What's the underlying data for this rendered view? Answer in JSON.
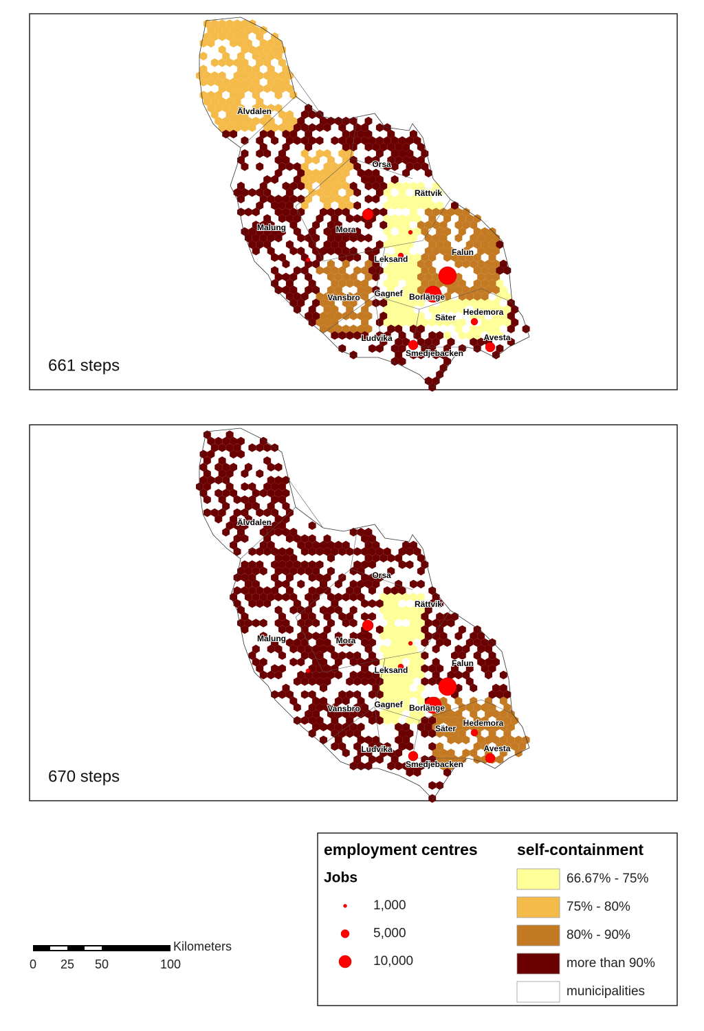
{
  "panels": [
    {
      "label": "661 steps",
      "places": [
        "Älvdalen",
        "Orsa",
        "Rättvik",
        "Mora",
        "Malung",
        "Leksand",
        "Falun",
        "Vansbro",
        "Gagnef",
        "Borlänge",
        "Säter",
        "Hedemora",
        "Ludvika",
        "Smedjebacken",
        "Avesta"
      ]
    },
    {
      "label": "670 steps",
      "places": [
        "Älvdalen",
        "Orsa",
        "Rättvik",
        "Mora",
        "Malung",
        "Leksand",
        "Falun",
        "Vansbro",
        "Gagnef",
        "Borlänge",
        "Säter",
        "Hedemora",
        "Ludvika",
        "Smedjebacken",
        "Avesta"
      ]
    }
  ],
  "legend": {
    "centres_title": "employment centres",
    "jobs_title": "Jobs",
    "jobs": [
      "1,000",
      "5,000",
      "10,000"
    ],
    "classes_title": "self-containment",
    "classes": [
      {
        "label": "66.67% - 75%",
        "color": "#ffff99"
      },
      {
        "label": "75% - 80%",
        "color": "#f4bb4a"
      },
      {
        "label": "80% - 90%",
        "color": "#c47a22"
      },
      {
        "label": "more than 90%",
        "color": "#6b0000"
      },
      {
        "label": "municipalities",
        "color": "#ffffff"
      }
    ]
  },
  "scale": {
    "unit": "Kilometers",
    "ticks": [
      "0",
      "25",
      "50",
      "100"
    ]
  }
}
